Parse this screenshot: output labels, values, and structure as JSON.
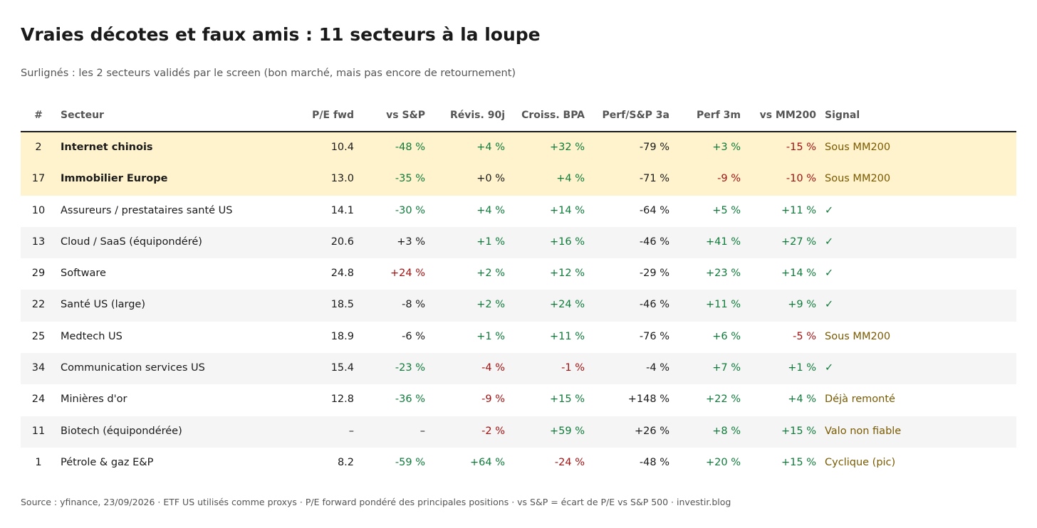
{
  "title": "Vraies décotes et faux amis : 11 secteurs à la loupe",
  "subtitle": "Surlignés : les 2 secteurs validés par le screen (bon marché, mais pas encore de retournement)",
  "source": "Source : yfinance, 23/09/2026 · ETF US utilisés comme proxys · P/E forward pondéré des principales positions · vs S&P = écart de P/E vs S&P 500 · investir.blog",
  "colors": {
    "positive": "#0f7a3a",
    "negative": "#a11212",
    "neutral": "#1a1a1a",
    "signal": "#7a5a00",
    "highlight_bg": "#fff3cd",
    "alt_row_bg": "#f5f5f5"
  },
  "chart_data": {
    "type": "table",
    "columns": [
      "#",
      "Secteur",
      "P/E fwd",
      "vs S&P",
      "Révis. 90j",
      "Croiss. BPA",
      "Perf/S&P 3a",
      "Perf 3m",
      "vs MM200",
      "Signal"
    ],
    "rows": [
      {
        "rank": "2",
        "sector": "Internet chinois",
        "pe": "10.4",
        "vs_sp": "-48 %",
        "rev": "+4 %",
        "growth": "+32 %",
        "perf3a": "-79 %",
        "perf3m": "+3 %",
        "mm200": "-15 %",
        "signal": "Sous MM200",
        "highlighted": true,
        "tones": {
          "vs_sp": "pos",
          "rev": "pos",
          "growth": "pos",
          "perf3a": "neu",
          "perf3m": "pos",
          "mm200": "neg",
          "signal": "warn"
        }
      },
      {
        "rank": "17",
        "sector": "Immobilier Europe",
        "pe": "13.0",
        "vs_sp": "-35 %",
        "rev": "+0 %",
        "growth": "+4 %",
        "perf3a": "-71 %",
        "perf3m": "-9 %",
        "mm200": "-10 %",
        "signal": "Sous MM200",
        "highlighted": true,
        "tones": {
          "vs_sp": "pos",
          "rev": "neu",
          "growth": "pos",
          "perf3a": "neu",
          "perf3m": "neg",
          "mm200": "neg",
          "signal": "warn"
        }
      },
      {
        "rank": "10",
        "sector": "Assureurs / prestataires santé US",
        "pe": "14.1",
        "vs_sp": "-30 %",
        "rev": "+4 %",
        "growth": "+14 %",
        "perf3a": "-64 %",
        "perf3m": "+5 %",
        "mm200": "+11 %",
        "signal": "✓",
        "highlighted": false,
        "tones": {
          "vs_sp": "pos",
          "rev": "pos",
          "growth": "pos",
          "perf3a": "neu",
          "perf3m": "pos",
          "mm200": "pos",
          "signal": "pos"
        }
      },
      {
        "rank": "13",
        "sector": "Cloud / SaaS (équipondéré)",
        "pe": "20.6",
        "vs_sp": "+3 %",
        "rev": "+1 %",
        "growth": "+16 %",
        "perf3a": "-46 %",
        "perf3m": "+41 %",
        "mm200": "+27 %",
        "signal": "✓",
        "highlighted": false,
        "tones": {
          "vs_sp": "neu",
          "rev": "pos",
          "growth": "pos",
          "perf3a": "neu",
          "perf3m": "pos",
          "mm200": "pos",
          "signal": "pos"
        }
      },
      {
        "rank": "29",
        "sector": "Software",
        "pe": "24.8",
        "vs_sp": "+24 %",
        "rev": "+2 %",
        "growth": "+12 %",
        "perf3a": "-29 %",
        "perf3m": "+23 %",
        "mm200": "+14 %",
        "signal": "✓",
        "highlighted": false,
        "tones": {
          "vs_sp": "neg",
          "rev": "pos",
          "growth": "pos",
          "perf3a": "neu",
          "perf3m": "pos",
          "mm200": "pos",
          "signal": "pos"
        }
      },
      {
        "rank": "22",
        "sector": "Santé US (large)",
        "pe": "18.5",
        "vs_sp": "-8 %",
        "rev": "+2 %",
        "growth": "+24 %",
        "perf3a": "-46 %",
        "perf3m": "+11 %",
        "mm200": "+9 %",
        "signal": "✓",
        "highlighted": false,
        "tones": {
          "vs_sp": "neu",
          "rev": "pos",
          "growth": "pos",
          "perf3a": "neu",
          "perf3m": "pos",
          "mm200": "pos",
          "signal": "pos"
        }
      },
      {
        "rank": "25",
        "sector": "Medtech US",
        "pe": "18.9",
        "vs_sp": "-6 %",
        "rev": "+1 %",
        "growth": "+11 %",
        "perf3a": "-76 %",
        "perf3m": "+6 %",
        "mm200": "-5 %",
        "signal": "Sous MM200",
        "highlighted": false,
        "tones": {
          "vs_sp": "neu",
          "rev": "pos",
          "growth": "pos",
          "perf3a": "neu",
          "perf3m": "pos",
          "mm200": "neg",
          "signal": "warn"
        }
      },
      {
        "rank": "34",
        "sector": "Communication services US",
        "pe": "15.4",
        "vs_sp": "-23 %",
        "rev": "-4 %",
        "growth": "-1 %",
        "perf3a": "-4 %",
        "perf3m": "+7 %",
        "mm200": "+1 %",
        "signal": "✓",
        "highlighted": false,
        "tones": {
          "vs_sp": "pos",
          "rev": "neg",
          "growth": "neg",
          "perf3a": "neu",
          "perf3m": "pos",
          "mm200": "pos",
          "signal": "pos"
        }
      },
      {
        "rank": "24",
        "sector": "Minières d'or",
        "pe": "12.8",
        "vs_sp": "-36 %",
        "rev": "-9 %",
        "growth": "+15 %",
        "perf3a": "+148 %",
        "perf3m": "+22 %",
        "mm200": "+4 %",
        "signal": "Déjà remonté",
        "highlighted": false,
        "tones": {
          "vs_sp": "pos",
          "rev": "neg",
          "growth": "pos",
          "perf3a": "neu",
          "perf3m": "pos",
          "mm200": "pos",
          "signal": "warn"
        }
      },
      {
        "rank": "11",
        "sector": "Biotech (équipondérée)",
        "pe": "–",
        "vs_sp": "–",
        "rev": "-2 %",
        "growth": "+59 %",
        "perf3a": "+26 %",
        "perf3m": "+8 %",
        "mm200": "+15 %",
        "signal": "Valo non fiable",
        "highlighted": false,
        "tones": {
          "vs_sp": "neu",
          "rev": "neg",
          "growth": "pos",
          "perf3a": "neu",
          "perf3m": "pos",
          "mm200": "pos",
          "signal": "warn"
        }
      },
      {
        "rank": "1",
        "sector": "Pétrole & gaz E&P",
        "pe": "8.2",
        "vs_sp": "-59 %",
        "rev": "+64 %",
        "growth": "-24 %",
        "perf3a": "-48 %",
        "perf3m": "+20 %",
        "mm200": "+15 %",
        "signal": "Cyclique (pic)",
        "highlighted": false,
        "tones": {
          "vs_sp": "pos",
          "rev": "pos",
          "growth": "neg",
          "perf3a": "neu",
          "perf3m": "pos",
          "mm200": "pos",
          "signal": "warn"
        }
      }
    ]
  }
}
